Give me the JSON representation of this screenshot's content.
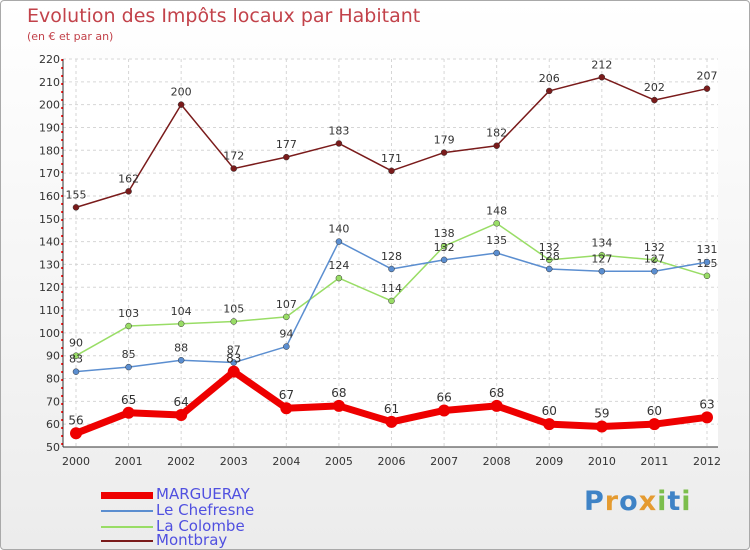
{
  "title": "Evolution des Impôts locaux par Habitant",
  "subtitle": "(en € et par an)",
  "logo": {
    "text": "Proxiti",
    "letters": [
      "P",
      "r",
      "o",
      "x",
      "i",
      "t",
      "i"
    ],
    "colors": [
      "#3f83c6",
      "#e59b30",
      "#3f83c6",
      "#e59b30",
      "#7cbe4c",
      "#3f83c6",
      "#7cbe4c"
    ]
  },
  "chart_data": {
    "type": "line",
    "title": "Evolution des Impôts locaux par Habitant",
    "subtitle": "(en € et par an)",
    "xlabel": "",
    "ylabel": "",
    "x": [
      "2000",
      "2001",
      "2002",
      "2003",
      "2004",
      "2005",
      "2006",
      "2007",
      "2008",
      "2009",
      "2010",
      "2011",
      "2012"
    ],
    "ylim": [
      50,
      220
    ],
    "yticks": [
      50,
      60,
      70,
      80,
      90,
      100,
      110,
      120,
      130,
      140,
      150,
      160,
      170,
      180,
      190,
      200,
      210,
      220
    ],
    "grid": true,
    "legend_position": "bottom-left",
    "series": [
      {
        "name": "MARGUERAY",
        "color": "#ee0000",
        "values": [
          56,
          65,
          64,
          83,
          67,
          68,
          61,
          66,
          68,
          60,
          59,
          60,
          63
        ]
      },
      {
        "name": "Le Chefresne",
        "color": "#5b8ed0",
        "values": [
          83,
          85,
          88,
          87,
          94,
          140,
          128,
          132,
          135,
          128,
          127,
          127,
          131
        ]
      },
      {
        "name": "La Colombe",
        "color": "#99dd66",
        "values": [
          90,
          103,
          104,
          105,
          107,
          124,
          114,
          138,
          148,
          132,
          134,
          132,
          125
        ]
      },
      {
        "name": "Montbray",
        "color": "#7a1b1b",
        "values": [
          155,
          162,
          200,
          172,
          177,
          183,
          171,
          179,
          182,
          206,
          212,
          202,
          207
        ]
      }
    ]
  }
}
